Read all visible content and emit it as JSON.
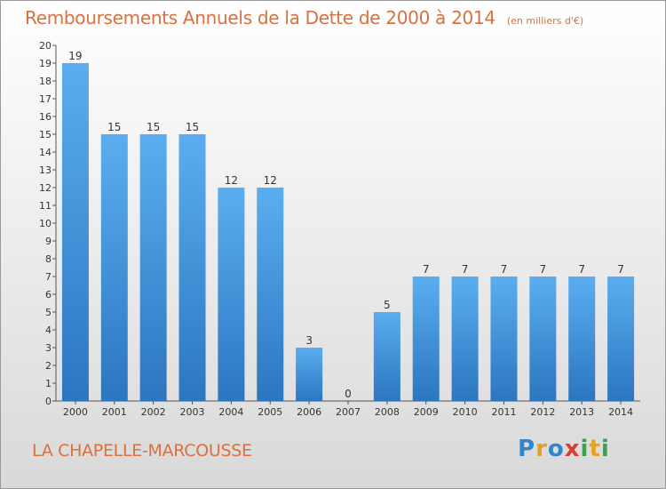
{
  "chart_data": {
    "type": "bar",
    "title": "Remboursements Annuels de la Dette de 2000 à 2014",
    "subtitle": "(en milliers d'€)",
    "categories": [
      "2000",
      "2001",
      "2002",
      "2003",
      "2004",
      "2005",
      "2006",
      "2007",
      "2008",
      "2009",
      "2010",
      "2011",
      "2012",
      "2013",
      "2014"
    ],
    "values": [
      19,
      15,
      15,
      15,
      12,
      12,
      3,
      0,
      5,
      7,
      7,
      7,
      7,
      7,
      7
    ],
    "ylim": [
      0,
      20
    ],
    "yticks": [
      "0",
      "1",
      "2",
      "3",
      "4",
      "5",
      "6",
      "7",
      "8",
      "9",
      "10",
      "11",
      "12",
      "13",
      "14",
      "15",
      "16",
      "17",
      "18",
      "19",
      "20"
    ],
    "grid": false,
    "bar_color": "#3d8fd6"
  },
  "commune": "LA CHAPELLE-MARCOUSSE",
  "logo": {
    "letters": [
      "P",
      "r",
      "o",
      "x",
      "i",
      "t",
      "i"
    ],
    "colors": [
      "#2f86c8",
      "#e8a020",
      "#2f86c8",
      "#d64034",
      "#3aa44a",
      "#e8a020",
      "#3aa44a"
    ]
  }
}
